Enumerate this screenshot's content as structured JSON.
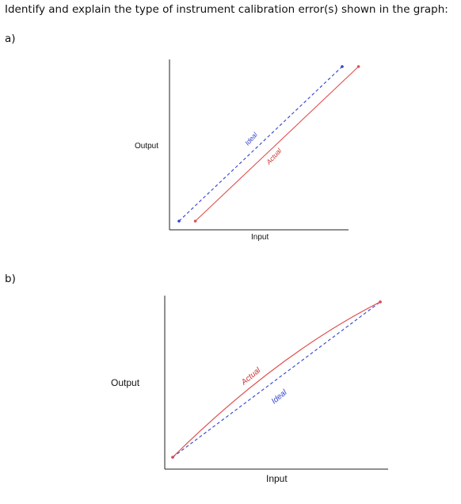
{
  "question": {
    "text": "Identify and explain the type of instrument calibration error(s) shown in the graph:"
  },
  "parts": [
    {
      "label": "a)"
    },
    {
      "label": "b)"
    }
  ],
  "chart_data": [
    {
      "type": "line",
      "title": "",
      "xlabel": "Input",
      "ylabel": "Output",
      "grid": false,
      "series": [
        {
          "name": "Ideal",
          "style": "dashed",
          "color": "#3344cc",
          "shape": "straight",
          "x": [
            0,
            1
          ],
          "y": [
            0,
            1
          ]
        },
        {
          "name": "Actual",
          "style": "solid",
          "color": "#e05050",
          "shape": "straight-offset",
          "x": [
            0.1,
            1.1
          ],
          "y": [
            0,
            1
          ]
        }
      ]
    },
    {
      "type": "line",
      "title": "",
      "xlabel": "Input",
      "ylabel": "Output",
      "grid": false,
      "series": [
        {
          "name": "Ideal",
          "style": "dashed",
          "color": "#3344cc",
          "shape": "straight",
          "x": [
            0,
            1
          ],
          "y": [
            0,
            1
          ]
        },
        {
          "name": "Actual",
          "style": "solid",
          "color": "#e05050",
          "shape": "concave-down",
          "x": [
            0,
            0.5,
            1
          ],
          "y": [
            0,
            0.58,
            1
          ]
        }
      ]
    }
  ]
}
